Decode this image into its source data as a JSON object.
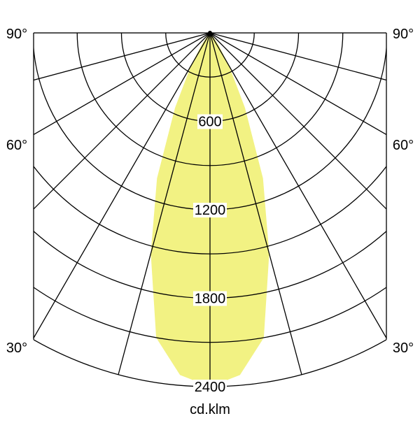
{
  "chart_data": {
    "type": "polar",
    "unit_label": "cd.klm",
    "radial_ticks": [
      600,
      1200,
      1800,
      2400
    ],
    "radial_grid_step": 300,
    "radial_max": 2400,
    "angle_grid_step_deg": 15,
    "angle_labels": [
      "90°",
      "60°",
      "30°"
    ],
    "grid": true,
    "fill_color": "#f2f283",
    "series": [
      {
        "angles_deg": [
          0,
          5,
          10,
          15,
          20,
          25,
          30,
          35,
          40,
          45
        ],
        "values": [
          2400,
          2330,
          2100,
          1550,
          1050,
          560,
          260,
          100,
          30,
          0
        ]
      }
    ]
  }
}
